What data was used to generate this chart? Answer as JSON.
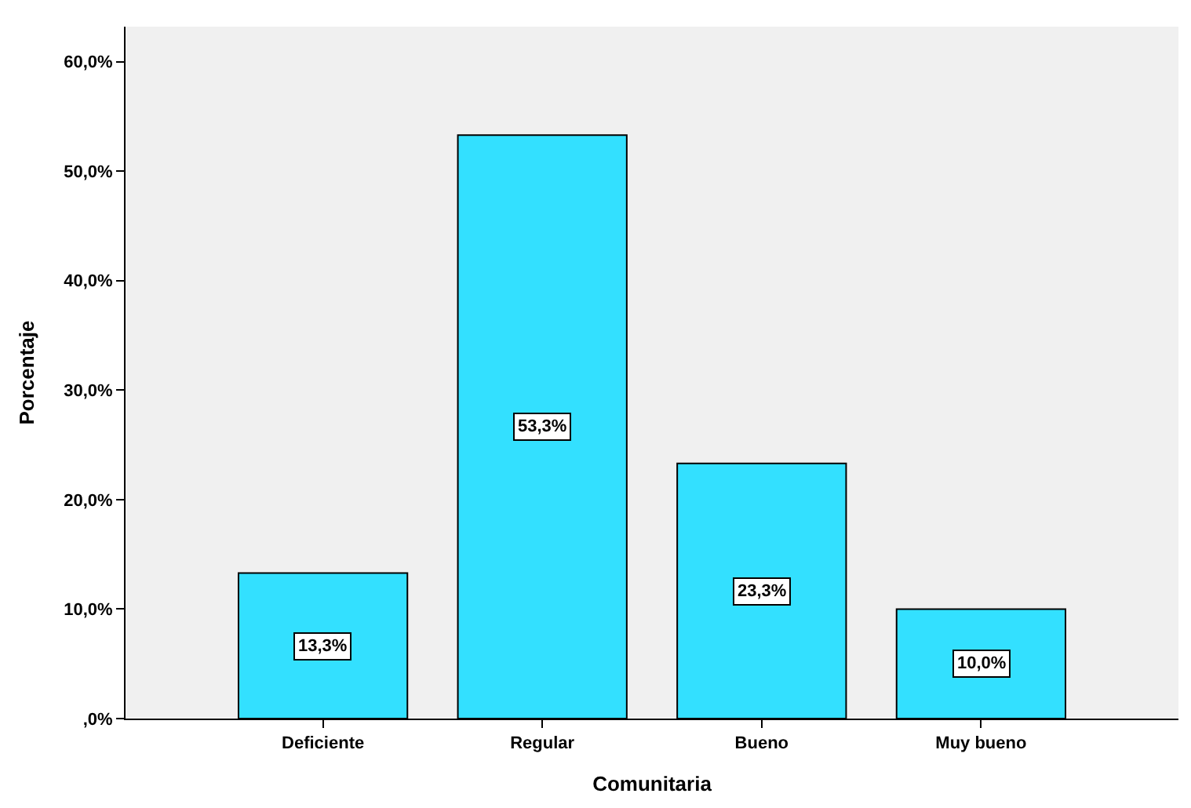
{
  "chart_data": {
    "type": "bar",
    "xlabel": "Comunitaria",
    "ylabel": "Porcentaje",
    "categories": [
      "Deficiente",
      "Regular",
      "Bueno",
      "Muy bueno"
    ],
    "values": [
      13.3,
      53.3,
      23.3,
      10.0
    ],
    "value_labels": [
      "13,3%",
      "53,3%",
      "23,3%",
      "10,0%"
    ],
    "color": "#33e0ff",
    "ylim": [
      0,
      63.2
    ],
    "yticks": [
      {
        "value": 0,
        "label": ",0%"
      },
      {
        "value": 10,
        "label": "10,0%"
      },
      {
        "value": 20,
        "label": "20,0%"
      },
      {
        "value": 30,
        "label": "30,0%"
      },
      {
        "value": 40,
        "label": "40,0%"
      },
      {
        "value": 50,
        "label": "50,0%"
      },
      {
        "value": 60,
        "label": "60,0%"
      }
    ],
    "grid": false
  }
}
